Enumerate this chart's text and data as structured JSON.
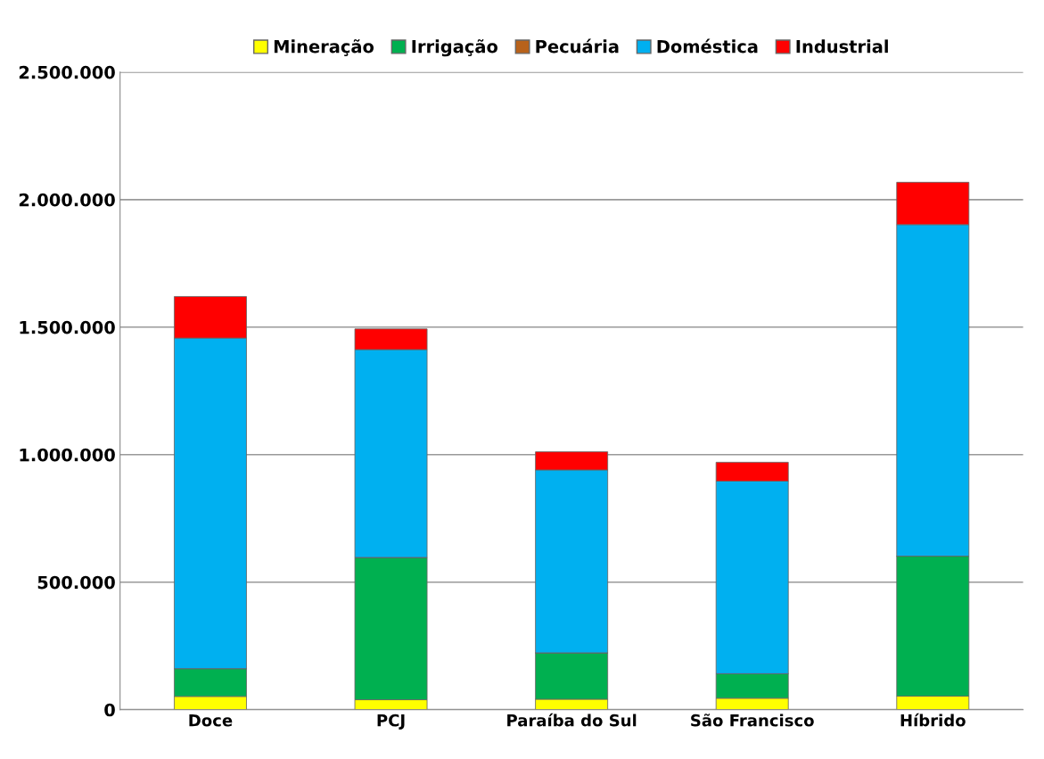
{
  "chart_data": {
    "type": "bar",
    "stacked": true,
    "categories": [
      "Doce",
      "PCJ",
      "Paraíba do Sul",
      "São Francisco",
      "Híbrido"
    ],
    "series": [
      {
        "name": "Mineração",
        "color": "#ffff00",
        "values": [
          52000,
          39000,
          41000,
          45000,
          53000
        ]
      },
      {
        "name": "Irrigação",
        "color": "#00b050",
        "values": [
          109000,
          558000,
          182000,
          96000,
          549000
        ]
      },
      {
        "name": "Pecuária",
        "color": "#b8621b",
        "values": [
          null,
          null,
          null,
          null,
          null
        ]
      },
      {
        "name": "Doméstica",
        "color": "#00b0f0",
        "values": [
          1296000,
          815000,
          717000,
          755000,
          1300000
        ]
      },
      {
        "name": "Industrial",
        "color": "#ff0000",
        "values": [
          163000,
          81000,
          71000,
          74000,
          166000
        ]
      }
    ],
    "ylim": [
      0,
      2500000
    ],
    "yticks": [
      {
        "value": 0,
        "label": "0"
      },
      {
        "value": 500000,
        "label": "500.000"
      },
      {
        "value": 1000000,
        "label": "1.000.000"
      },
      {
        "value": 1500000,
        "label": "1.500.000"
      },
      {
        "value": 2000000,
        "label": "2.000.000"
      },
      {
        "value": 2500000,
        "label": "2.500.000"
      }
    ],
    "grid": "y",
    "legend": "top"
  }
}
